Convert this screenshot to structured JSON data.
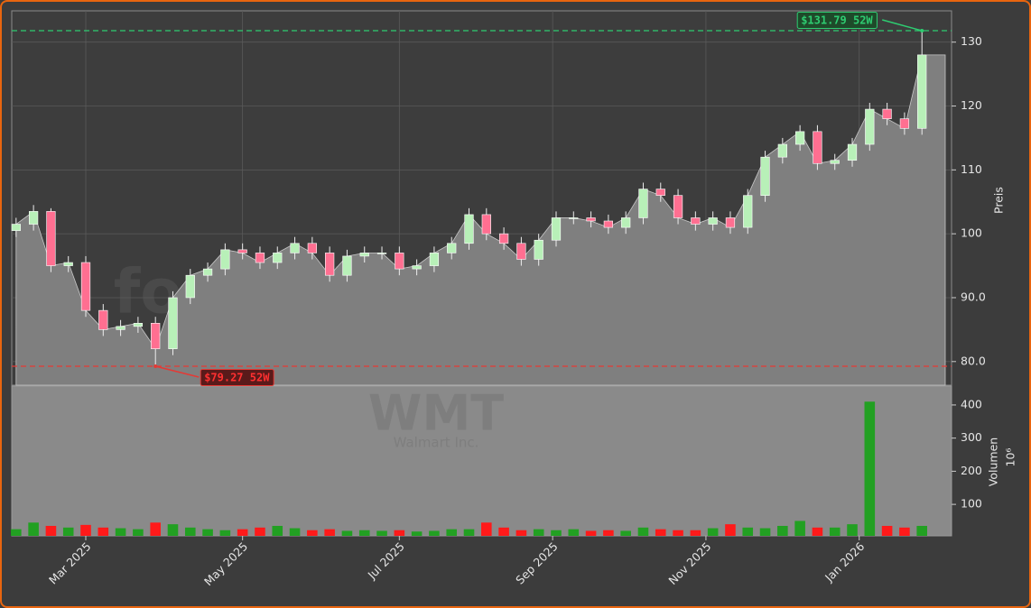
{
  "chart_data": [
    {
      "type": "candlestick",
      "ylabel": "Preis",
      "watermark": "forexsignale.trade",
      "up_color": "#b8f0b8",
      "down_color": "#ff6f91",
      "area_color": "#7f7f7f",
      "open": [
        100.5,
        101.5,
        103.5,
        95,
        95.5,
        88,
        85,
        85.5,
        86,
        82,
        90,
        93.5,
        94.5,
        97.5,
        97,
        95.5,
        97,
        98.5,
        97,
        93.5,
        96.5,
        97,
        97,
        94.5,
        95,
        97,
        98.5,
        103,
        100,
        98.5,
        96,
        99,
        102.5,
        102.5,
        102,
        101,
        102.5,
        107,
        106,
        102.5,
        101.5,
        102.5,
        101,
        106,
        112,
        114,
        116,
        111,
        111.5,
        114,
        119.5,
        118,
        116.5
      ],
      "high": [
        102.5,
        104.5,
        104,
        96.5,
        96.5,
        89,
        86.5,
        87,
        87,
        91,
        94.5,
        95.5,
        98.5,
        98.5,
        98,
        98,
        99.5,
        99.5,
        98,
        97.5,
        98,
        98,
        98,
        96,
        98,
        99.5,
        104,
        104,
        101,
        99.5,
        100,
        103.5,
        103.5,
        103.5,
        103,
        103.5,
        108,
        108,
        107,
        103.5,
        103.5,
        103.5,
        107,
        113,
        115,
        117,
        117,
        112.5,
        115,
        120.5,
        120.5,
        119,
        131.79
      ],
      "low": [
        99.5,
        100.5,
        94,
        94,
        87,
        84,
        84,
        84.5,
        79.27,
        81,
        89,
        92.5,
        93.5,
        96,
        94.5,
        94.5,
        96,
        96,
        92.5,
        92.5,
        95.5,
        96,
        93.5,
        93.5,
        94,
        96,
        97.5,
        99,
        97.5,
        95,
        95,
        98,
        101.5,
        101,
        100,
        100,
        101.5,
        105,
        101.5,
        100.5,
        100.5,
        100,
        100,
        105,
        111,
        113,
        110,
        110,
        110.5,
        113,
        117,
        115.5,
        115.5
      ],
      "close": [
        101.5,
        103.5,
        95,
        95.5,
        88,
        85,
        85.5,
        86,
        82,
        90,
        93.5,
        94.5,
        97.5,
        97,
        95.5,
        97,
        98.5,
        97,
        93.5,
        96.5,
        97,
        97,
        94.5,
        95,
        97,
        98.5,
        103,
        100,
        98.5,
        96,
        99,
        102.5,
        102.5,
        102,
        101,
        102.5,
        107,
        106,
        102.5,
        101.5,
        102.5,
        101,
        106,
        112,
        114,
        116,
        111,
        111.5,
        114,
        119.5,
        118,
        116.5,
        128
      ],
      "xlim": [
        -0.25,
        53.7
      ],
      "ylim": [
        76.3,
        134.9
      ],
      "yticks": [
        {
          "value": 80,
          "label": "80.0"
        },
        {
          "value": 90,
          "label": "90.0"
        },
        100,
        110,
        120,
        130
      ],
      "grid": true,
      "annotations": [
        {
          "text": "$131.79 52W",
          "value": 131.79,
          "color": "#2ecc71",
          "point": 52
        },
        {
          "text": "$79.27 52W",
          "value": 79.27,
          "color": "#e53935",
          "point": 8
        }
      ]
    },
    {
      "type": "bar",
      "ylabel": "Volumen",
      "exponent": "10⁶",
      "symbol": "WMT",
      "company": "Walmart Inc.",
      "up_color": "#22a022",
      "down_color": "#ff1a1a",
      "values": [
        25,
        45,
        35,
        30,
        38,
        30,
        28,
        25,
        45,
        40,
        30,
        25,
        22,
        25,
        30,
        35,
        28,
        22,
        25,
        20,
        22,
        20,
        22,
        18,
        20,
        25,
        25,
        45,
        30,
        22,
        25,
        22,
        25,
        20,
        22,
        20,
        30,
        25,
        22,
        22,
        28,
        40,
        30,
        28,
        35,
        50,
        30,
        30,
        40,
        410,
        35,
        30,
        35
      ],
      "xlim": [
        -0.25,
        53.7
      ],
      "ylim": [
        5,
        457
      ],
      "yticks": [
        100,
        200,
        300,
        400
      ],
      "xticks": [
        {
          "value": 4,
          "label": "Mar 2025"
        },
        {
          "value": 13,
          "label": "May 2025"
        },
        {
          "value": 22,
          "label": "Jul 2025"
        },
        {
          "value": 30.8,
          "label": "Sep 2025"
        },
        {
          "value": 39.6,
          "label": "Nov 2025"
        },
        {
          "value": 48.4,
          "label": "Jan 2026"
        }
      ]
    }
  ]
}
